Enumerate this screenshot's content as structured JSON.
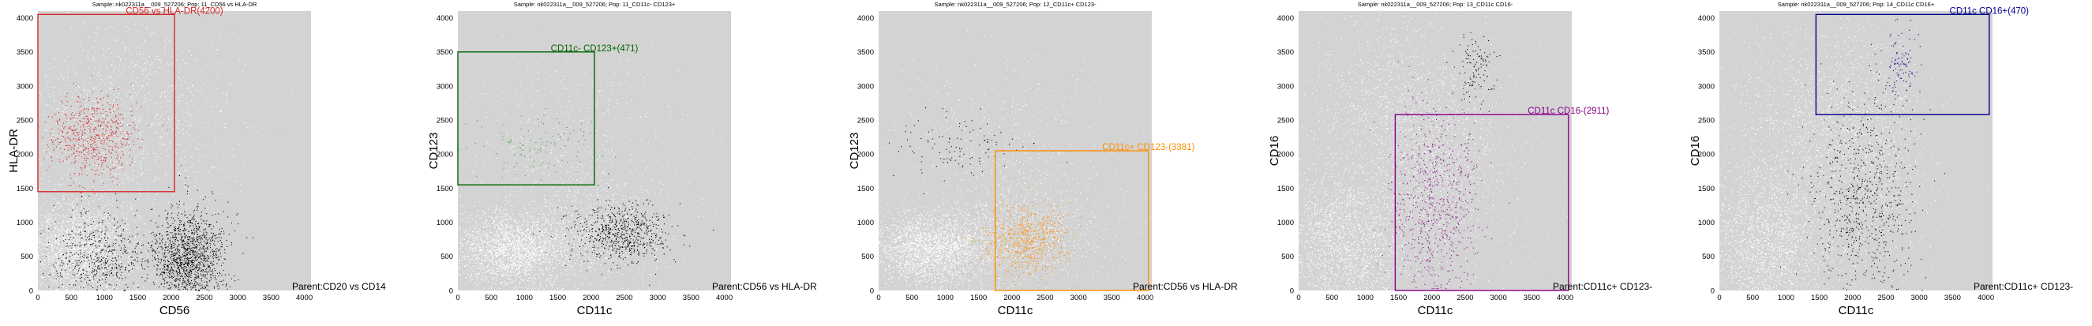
{
  "chart_data": [
    {
      "type": "scatter",
      "title": "Sample: nk022311a__009_527206; Pop: 11_CD56 vs HLA-DR",
      "xlabel": "CD56",
      "ylabel": "HLA-DR",
      "xlim": [
        0,
        4100
      ],
      "ylim": [
        0,
        4100
      ],
      "xticks": [
        0,
        500,
        1000,
        1500,
        2000,
        2500,
        3000,
        3500,
        4000
      ],
      "yticks": [
        0,
        500,
        1000,
        1500,
        2000,
        2500,
        3000,
        3500,
        4000
      ],
      "parent_label": "Parent:CD20 vs CD14",
      "gate": {
        "label": "CD56 vs HLA-DR(4200)",
        "color": "#d62728",
        "x": [
          0,
          2050
        ],
        "y": [
          1450,
          4050
        ]
      },
      "series": [
        {
          "color": "#ffffff",
          "clusters": [
            {
              "cx": 600,
              "cy": 600,
              "sx": 450,
              "sy": 350,
              "n": 2600
            },
            {
              "cx": 1300,
              "cy": 2500,
              "sx": 900,
              "sy": 800,
              "n": 1400
            }
          ]
        },
        {
          "color": "#d62728",
          "clusters": [
            {
              "cx": 800,
              "cy": 2250,
              "sx": 350,
              "sy": 300,
              "n": 650
            }
          ]
        },
        {
          "color": "#000000",
          "clusters": [
            {
              "cx": 2250,
              "cy": 450,
              "sx": 280,
              "sy": 350,
              "n": 1400
            },
            {
              "cx": 900,
              "cy": 450,
              "sx": 420,
              "sy": 350,
              "n": 550
            }
          ]
        }
      ]
    },
    {
      "type": "scatter",
      "title": "Sample: nk022311a__009_527206; Pop: 11_CD11c- CD123+",
      "xlabel": "CD11c",
      "ylabel": "CD123",
      "xlim": [
        0,
        4100
      ],
      "ylim": [
        0,
        4100
      ],
      "xticks": [
        0,
        500,
        1000,
        1500,
        2000,
        2500,
        3000,
        3500,
        4000
      ],
      "yticks": [
        0,
        500,
        1000,
        1500,
        2000,
        2500,
        3000,
        3500,
        4000
      ],
      "parent_label": "Parent:CD56 vs HLA-DR",
      "gate": {
        "label": "CD11c- CD123+(471)",
        "color": "#006400",
        "x": [
          0,
          2050
        ],
        "y": [
          1550,
          3500
        ]
      },
      "series": [
        {
          "color": "#ffffff",
          "clusters": [
            {
              "cx": 800,
              "cy": 600,
              "sx": 450,
              "sy": 280,
              "n": 2600
            },
            {
              "cx": 2100,
              "cy": 900,
              "sx": 600,
              "sy": 450,
              "n": 900
            },
            {
              "cx": 1800,
              "cy": 2200,
              "sx": 800,
              "sy": 700,
              "n": 500
            }
          ]
        },
        {
          "color": "#2ca02c",
          "clusters": [
            {
              "cx": 1200,
              "cy": 2150,
              "sx": 450,
              "sy": 220,
              "n": 110
            }
          ]
        },
        {
          "color": "#000000",
          "clusters": [
            {
              "cx": 2450,
              "cy": 850,
              "sx": 380,
              "sy": 230,
              "n": 650
            }
          ]
        }
      ]
    },
    {
      "type": "scatter",
      "title": "Sample: nk022311a__009_527206; Pop: 12_CD11c+ CD123-",
      "xlabel": "CD11c",
      "ylabel": "CD123",
      "xlim": [
        0,
        4100
      ],
      "ylim": [
        0,
        4100
      ],
      "xticks": [
        0,
        500,
        1000,
        1500,
        2000,
        2500,
        3000,
        3500,
        4000
      ],
      "yticks": [
        0,
        500,
        1000,
        1500,
        2000,
        2500,
        3000,
        3500,
        4000
      ],
      "parent_label": "Parent:CD56 vs HLA-DR",
      "gate": {
        "label": "CD11c+ CD123-(3381)",
        "color": "#ff8c00",
        "x": [
          1750,
          4050
        ],
        "y": [
          0,
          2050
        ]
      },
      "series": [
        {
          "color": "#ffffff",
          "clusters": [
            {
              "cx": 800,
              "cy": 600,
              "sx": 450,
              "sy": 280,
              "n": 2600
            },
            {
              "cx": 2200,
              "cy": 900,
              "sx": 650,
              "sy": 450,
              "n": 900
            },
            {
              "cx": 1800,
              "cy": 2200,
              "sx": 800,
              "sy": 700,
              "n": 500
            }
          ]
        },
        {
          "color": "#ff8c00",
          "clusters": [
            {
              "cx": 2200,
              "cy": 750,
              "sx": 320,
              "sy": 260,
              "n": 700
            }
          ]
        },
        {
          "color": "#000000",
          "clusters": [
            {
              "cx": 1200,
              "cy": 2100,
              "sx": 450,
              "sy": 250,
              "n": 110
            }
          ]
        }
      ]
    },
    {
      "type": "scatter",
      "title": "Sample: nk022311a__009_527206; Pop: 13_CD11c CD16-",
      "xlabel": "CD11c",
      "ylabel": "CD16",
      "xlim": [
        0,
        4100
      ],
      "ylim": [
        0,
        4100
      ],
      "xticks": [
        0,
        500,
        1000,
        1500,
        2000,
        2500,
        3000,
        3500,
        4000
      ],
      "yticks": [
        0,
        500,
        1000,
        1500,
        2000,
        2500,
        3000,
        3500,
        4000
      ],
      "parent_label": "Parent:CD11c+ CD123-",
      "gate": {
        "label": "CD11c CD16-(2911)",
        "color": "#8b008b",
        "x": [
          1450,
          4050
        ],
        "y": [
          0,
          2580
        ]
      },
      "series": [
        {
          "color": "#ffffff",
          "clusters": [
            {
              "cx": 700,
              "cy": 700,
              "sx": 500,
              "sy": 600,
              "n": 2400
            },
            {
              "cx": 1500,
              "cy": 2600,
              "sx": 700,
              "sy": 700,
              "n": 1400
            },
            {
              "cx": 2300,
              "cy": 1600,
              "sx": 500,
              "sy": 800,
              "n": 800
            }
          ]
        },
        {
          "color": "#8b008b",
          "clusters": [
            {
              "cx": 2050,
              "cy": 1300,
              "sx": 330,
              "sy": 750,
              "n": 700
            }
          ]
        },
        {
          "color": "#000000",
          "clusters": [
            {
              "cx": 2650,
              "cy": 3250,
              "sx": 150,
              "sy": 250,
              "n": 110
            }
          ]
        }
      ]
    },
    {
      "type": "scatter",
      "title": "Sample: nk022311a__009_527206; Pop: 14_CD11c CD16+",
      "xlabel": "CD11c",
      "ylabel": "CD16",
      "xlim": [
        0,
        4100
      ],
      "ylim": [
        0,
        4100
      ],
      "xticks": [
        0,
        500,
        1000,
        1500,
        2000,
        2500,
        3000,
        3500,
        4000
      ],
      "yticks": [
        0,
        500,
        1000,
        1500,
        2000,
        2500,
        3000,
        3500,
        4000
      ],
      "parent_label": "Parent:CD11c+ CD123-",
      "gate": {
        "label": "CD11c CD16+(470)",
        "color": "#00008b",
        "x": [
          1450,
          4050
        ],
        "y": [
          2580,
          4050
        ]
      },
      "series": [
        {
          "color": "#ffffff",
          "clusters": [
            {
              "cx": 700,
              "cy": 700,
              "sx": 500,
              "sy": 600,
              "n": 2400
            },
            {
              "cx": 1500,
              "cy": 2600,
              "sx": 700,
              "sy": 700,
              "n": 1400
            },
            {
              "cx": 2300,
              "cy": 1800,
              "sx": 500,
              "sy": 900,
              "n": 800
            }
          ]
        },
        {
          "color": "#00008b",
          "clusters": [
            {
              "cx": 2700,
              "cy": 3300,
              "sx": 150,
              "sy": 250,
              "n": 110
            }
          ]
        },
        {
          "color": "#000000",
          "clusters": [
            {
              "cx": 2150,
              "cy": 1350,
              "sx": 380,
              "sy": 750,
              "n": 700
            }
          ]
        }
      ]
    }
  ]
}
